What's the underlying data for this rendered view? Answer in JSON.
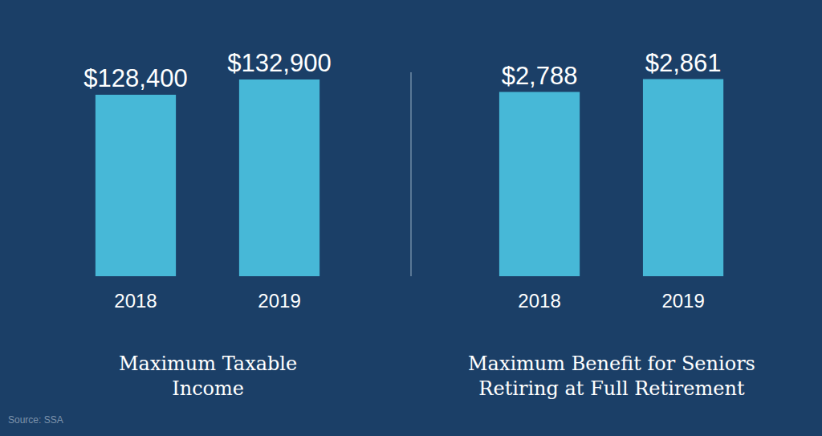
{
  "chart_data": [
    {
      "type": "bar",
      "title": "Maximum Taxable\nIncome",
      "categories": [
        "2018",
        "2019"
      ],
      "values": [
        128400,
        132900
      ],
      "value_labels": [
        "$128,400",
        "$132,900"
      ],
      "color": "#47b8d7",
      "ylim": [
        75000,
        135000
      ],
      "grid": false,
      "data_labels": true,
      "tick_labels": "x"
    },
    {
      "type": "bar",
      "title": "Maximum Benefit for Seniors\nRetiring at Full Retirement",
      "categories": [
        "2018",
        "2019"
      ],
      "values": [
        2788,
        2861
      ],
      "value_labels": [
        "$2,788",
        "$2,861"
      ],
      "color": "#47b8d7",
      "ylim": [
        1740,
        2900
      ],
      "grid": false,
      "data_labels": true,
      "tick_labels": "x"
    }
  ],
  "source": "Source: SSA"
}
